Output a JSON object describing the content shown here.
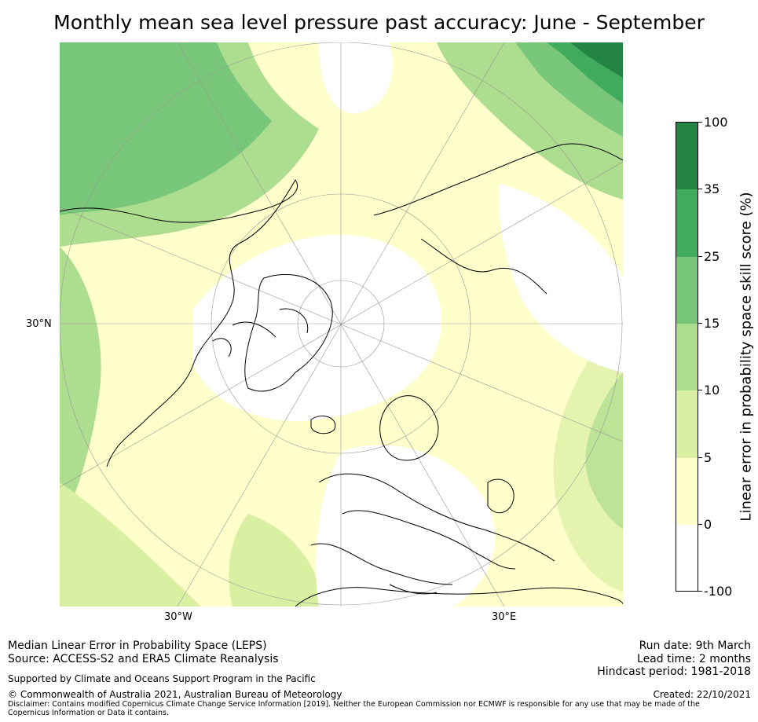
{
  "title": "Monthly mean sea level pressure past accuracy: June - September",
  "map": {
    "lat_label": "30°N",
    "lon_labels": [
      "30°W",
      "30°E"
    ]
  },
  "colorbar": {
    "title": "Linear error in probability space skill score (%)",
    "ticks": [
      "100",
      "35",
      "25",
      "15",
      "10",
      "5",
      "0",
      "-100"
    ],
    "colors": [
      "#238443",
      "#41ab5d",
      "#78c679",
      "#addd8e",
      "#d9f0a3",
      "#ffffcc",
      "#ffffff"
    ]
  },
  "footer": {
    "metric": "Median Linear Error in Probability Space (LEPS)",
    "source": "Source: ACCESS-S2 and ERA5 Climate Reanalysis",
    "supported": "Supported by Climate and Oceans Support Program in the Pacific",
    "copyright": "© Commonwealth of Australia 2021, Australian Bureau of Meteorology",
    "disclaimer": "Disclaimer: Contains modified Copernicus Climate Change Service Information [2019]. Neither the European Commission nor ECMWF is responsible for any use that may be made of the Copernicus Information or Data it contains.",
    "run_date": "Run date: 9th March",
    "lead_time": "Lead time: 2 months",
    "hindcast": "Hindcast period: 1981-2018",
    "created": "Created: 22/10/2021"
  }
}
